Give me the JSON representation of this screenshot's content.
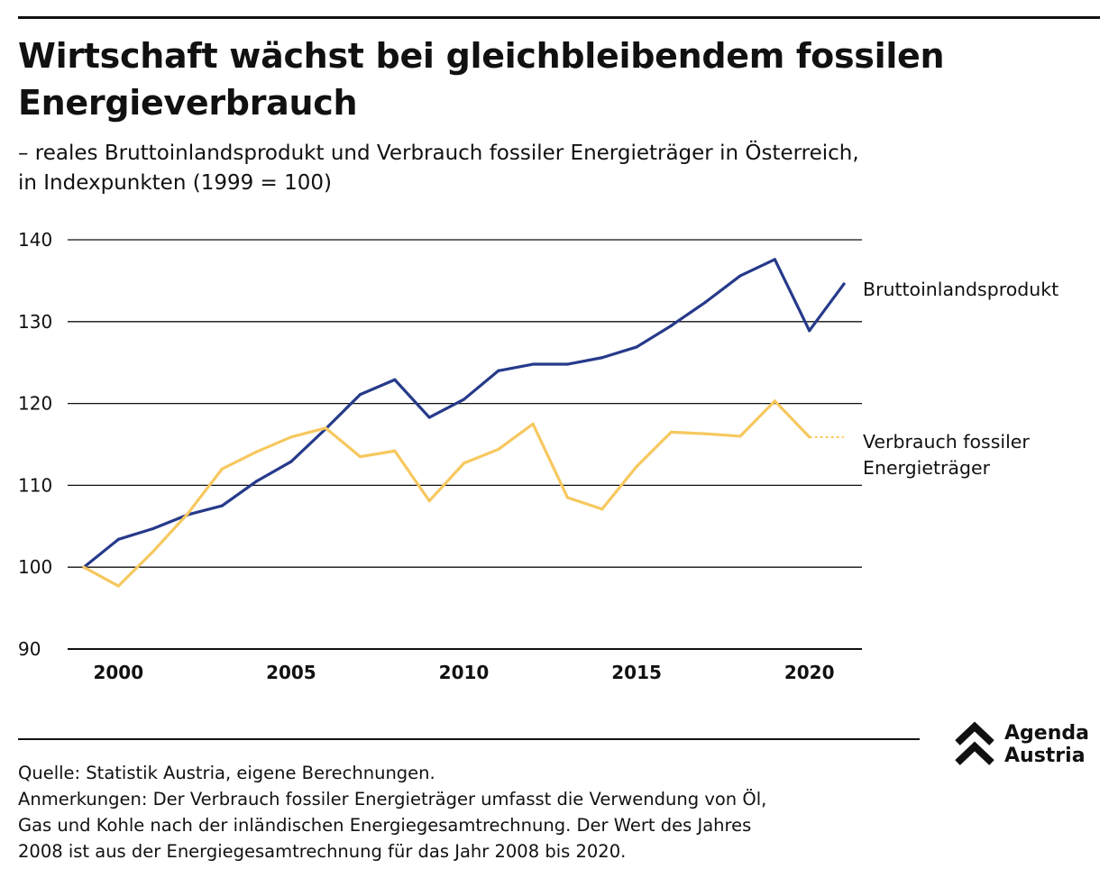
{
  "title": "Wirtschaft wächst bei gleichbleibendem fossilen Energieverbrauch",
  "subtitle_lines": [
    "– reales Bruttoinlandsprodukt und Verbrauch fossiler Energieträger in Österreich,",
    "in Indexpunkten (1999 = 100)"
  ],
  "chart_data": {
    "type": "line",
    "title": "Wirtschaft wächst bei gleichbleibendem fossilen Energieverbrauch",
    "xlabel": "",
    "ylabel": "",
    "xlim": [
      1999,
      2021
    ],
    "ylim": [
      90,
      140
    ],
    "x_ticks": [
      2000,
      2005,
      2010,
      2015,
      2020
    ],
    "y_ticks": [
      90,
      100,
      110,
      120,
      130,
      140
    ],
    "grid": "horizontal",
    "legend": "direct labels at right end of lines",
    "series": [
      {
        "name": "Bruttoinlandsprodukt",
        "color": "#263a8a",
        "x": [
          1999,
          2000,
          2001,
          2002,
          2003,
          2004,
          2005,
          2006,
          2007,
          2008,
          2009,
          2010,
          2011,
          2012,
          2013,
          2014,
          2015,
          2016,
          2017,
          2018,
          2019,
          2020,
          2021
        ],
        "y": [
          100,
          103.4,
          104.7,
          106.4,
          107.5,
          110.5,
          112.9,
          116.9,
          121.1,
          122.9,
          118.3,
          120.5,
          124.0,
          124.8,
          124.8,
          125.6,
          126.9,
          129.5,
          132.4,
          135.6,
          137.6,
          128.9,
          134.6
        ]
      },
      {
        "name": "Verbrauch fossiler Energieträger",
        "label_lines": [
          "Verbrauch fossiler",
          "Energieträger"
        ],
        "color": "#f7c85f",
        "x": [
          1999,
          2000,
          2001,
          2002,
          2003,
          2004,
          2005,
          2006,
          2007,
          2008,
          2009,
          2010,
          2011,
          2012,
          2013,
          2014,
          2015,
          2016,
          2017,
          2018,
          2019,
          2020
        ],
        "y": [
          100,
          97.7,
          101.9,
          106.5,
          112.0,
          114.1,
          115.9,
          117.0,
          113.5,
          114.2,
          108.1,
          112.7,
          114.4,
          117.5,
          108.5,
          107.1,
          112.3,
          116.5,
          116.3,
          116.0,
          120.3,
          115.9
        ],
        "projection": {
          "x": [
            2020,
            2021
          ],
          "y": [
            115.9,
            115.9
          ],
          "style": "dotted"
        }
      }
    ]
  },
  "footer": {
    "source": "Quelle: Statistik Austria, eigene Berechnungen.",
    "notes_lines": [
      "Anmerkungen: Der Verbrauch fossiler Energieträger umfasst die Verwendung von Öl,",
      "Gas und Kohle nach der inländischen Energiegesamtrechnung. Der Wert des Jahres",
      "2008 ist aus der Energiegesamtrechnung für das Jahr 2008 bis 2020."
    ]
  },
  "logo": {
    "line1": "Agenda",
    "line2": "Austria",
    "icon": "double-chevron-up-icon"
  }
}
